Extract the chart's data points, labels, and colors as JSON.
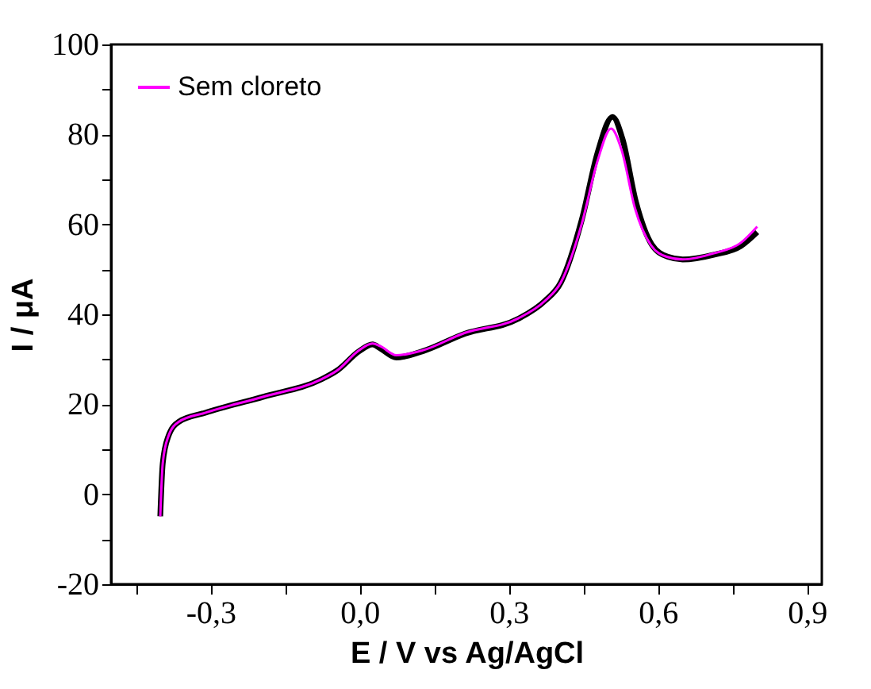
{
  "chart_data": {
    "type": "line",
    "xlabel": "E / V vs Ag/AgCl",
    "ylabel": "I / μA",
    "xlim": [
      -0.5,
      0.93
    ],
    "ylim": [
      -20,
      100
    ],
    "xticks": [
      {
        "value": -0.45,
        "label": null
      },
      {
        "value": -0.3,
        "label": "-0,3"
      },
      {
        "value": -0.15,
        "label": null
      },
      {
        "value": 0,
        "label": "0,0"
      },
      {
        "value": 0.15,
        "label": null
      },
      {
        "value": 0.3,
        "label": "0,3"
      },
      {
        "value": 0.45,
        "label": null
      },
      {
        "value": 0.6,
        "label": "0,6"
      },
      {
        "value": 0.75,
        "label": null
      },
      {
        "value": 0.9,
        "label": "0,9"
      }
    ],
    "yticks": [
      -20,
      {
        "value": -10,
        "label": null
      },
      0,
      {
        "value": 10,
        "label": null
      },
      20,
      {
        "value": 30,
        "label": null
      },
      40,
      {
        "value": 50,
        "label": null
      },
      60,
      {
        "value": 70,
        "label": null
      },
      80,
      {
        "value": 90,
        "label": null
      },
      100
    ],
    "grid": false,
    "legend": "top left",
    "marker": "none",
    "line_style": "solid",
    "series": [
      {
        "color": "#000000",
        "x": [
          -0.401,
          -0.396,
          -0.385,
          -0.364,
          -0.311,
          -0.193,
          -0.076,
          -0.044,
          -0.001,
          0.026,
          0.042,
          0.074,
          0.127,
          0.212,
          0.319,
          0.373,
          0.405,
          0.447,
          0.479,
          0.509,
          0.529,
          0.556,
          0.588,
          0.62,
          0.65,
          0.714,
          0.767,
          0.8
        ],
        "values": [
          -4.9,
          6.9,
          12.8,
          16.1,
          18.1,
          21.7,
          25.6,
          27.6,
          31.8,
          33.3,
          32.4,
          30.4,
          31.8,
          35.7,
          39.0,
          43.0,
          47.1,
          61.0,
          76.0,
          83.9,
          79.0,
          65.0,
          55.5,
          52.8,
          52.2,
          53.3,
          55.2,
          58.3
        ]
      },
      {
        "name": "Sem cloreto",
        "color": "#ff00ff",
        "x": [
          -0.401,
          -0.396,
          -0.385,
          -0.364,
          -0.311,
          -0.193,
          -0.076,
          -0.044,
          -0.001,
          0.026,
          0.042,
          0.074,
          0.127,
          0.212,
          0.319,
          0.373,
          0.405,
          0.447,
          0.479,
          0.506,
          0.527,
          0.554,
          0.586,
          0.618,
          0.65,
          0.714,
          0.767,
          0.8
        ],
        "values": [
          -4.9,
          6.9,
          12.8,
          16.1,
          18.1,
          21.7,
          25.6,
          27.6,
          32.0,
          33.5,
          32.9,
          30.9,
          32.0,
          35.9,
          39.1,
          43.0,
          47.1,
          60.1,
          74.2,
          81.3,
          76.6,
          63.6,
          55.4,
          52.8,
          52.2,
          53.6,
          55.9,
          59.5
        ]
      }
    ]
  }
}
